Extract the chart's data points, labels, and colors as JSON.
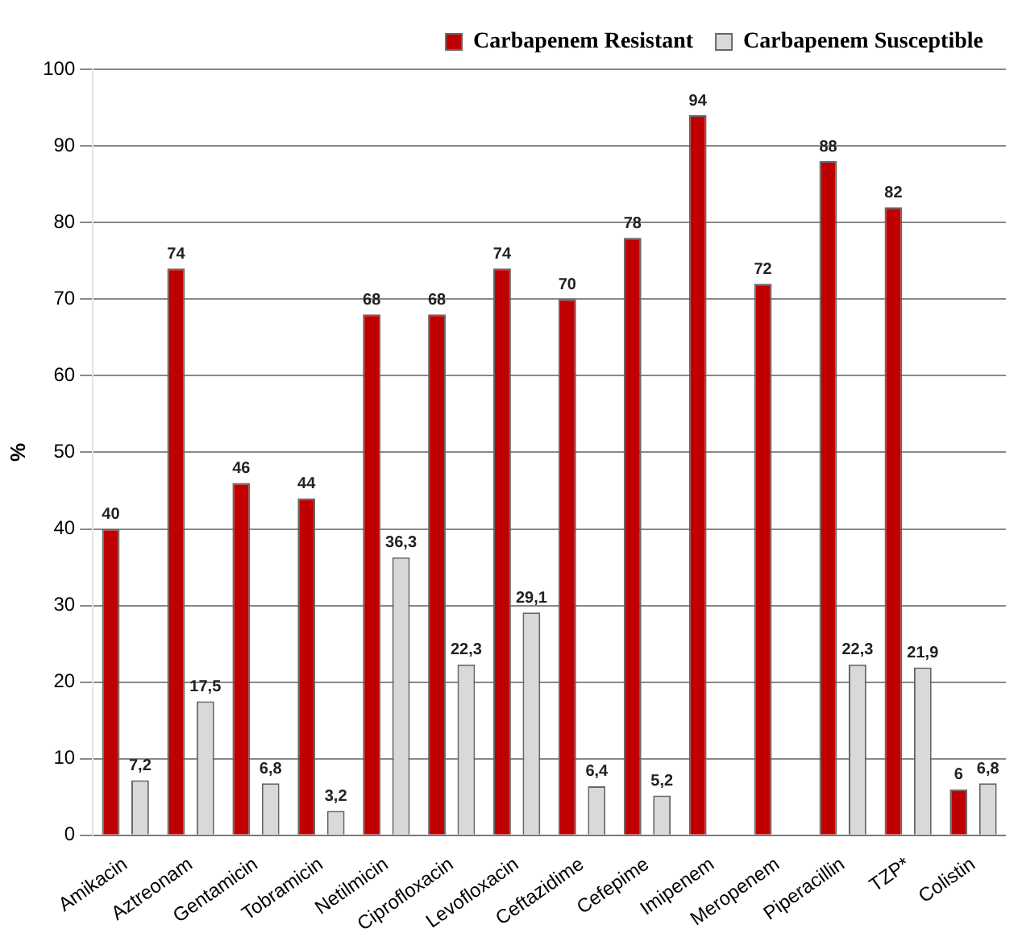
{
  "chart_data": {
    "type": "bar",
    "ylabel": "%",
    "categories": [
      "Amikacin",
      "Aztreonam",
      "Gentamicin",
      "Tobramicin",
      "Netilmicin",
      "Ciprofloxacin",
      "Levofloxacin",
      "Ceftazidime",
      "Cefepime",
      "Imipenem",
      "Meropenem",
      "Piperacillin",
      "TZP*",
      "Colistin"
    ],
    "series": [
      {
        "name": "Carbapenem Resistant",
        "color": "#c00000",
        "values": [
          40,
          74,
          46,
          44,
          68,
          68,
          74,
          70,
          78,
          94,
          72,
          88,
          82,
          6
        ],
        "value_labels": [
          "40",
          "74",
          "46",
          "44",
          "68",
          "68",
          "74",
          "70",
          "78",
          "94",
          "72",
          "88",
          "82",
          "6"
        ]
      },
      {
        "name": "Carbapenem Susceptible",
        "color": "#d9d9d9",
        "values": [
          7.2,
          17.5,
          6.8,
          3.2,
          36.3,
          22.3,
          29.1,
          6.4,
          5.2,
          0,
          0,
          22.3,
          21.9,
          6.8
        ],
        "value_labels": [
          "7,2",
          "17,5",
          "6,8",
          "3,2",
          "36,3",
          "22,3",
          "29,1",
          "6,4",
          "5,2",
          null,
          null,
          "22,3",
          "21,9",
          "6,8"
        ]
      }
    ],
    "ylim": [
      0,
      100
    ],
    "yticks": [
      0,
      10,
      20,
      30,
      40,
      50,
      60,
      70,
      80,
      90,
      100
    ],
    "grid": "y",
    "legend": "top right"
  }
}
